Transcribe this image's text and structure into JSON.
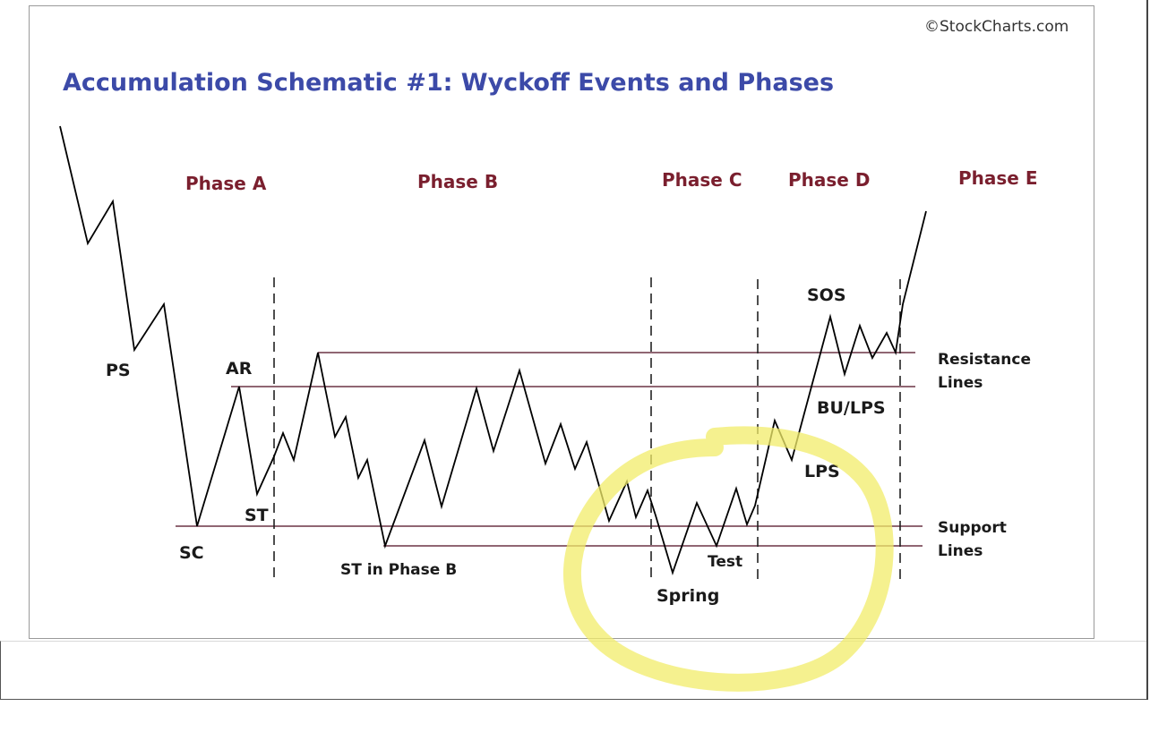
{
  "watermark": "©StockCharts.com",
  "title": "Accumulation Schematic #1: Wyckoff Events and Phases",
  "phases": [
    "Phase A",
    "Phase B",
    "Phase C",
    "Phase D",
    "Phase E"
  ],
  "events": {
    "ps": "PS",
    "sc": "SC",
    "ar": "AR",
    "st": "ST",
    "st_phase_b": "ST in Phase B",
    "spring": "Spring",
    "test": "Test",
    "sos": "SOS",
    "bu_lps": "BU/LPS",
    "lps": "LPS"
  },
  "line_labels": {
    "resistance_1": "Resistance",
    "resistance_2": "Lines",
    "support_1": "Support",
    "support_2": "Lines"
  },
  "colors": {
    "title": "#3c4aa8",
    "phase": "#7a1f2e",
    "level_line": "#6b3345",
    "price_line": "#000000",
    "highlight": "#f2ec6a"
  }
}
